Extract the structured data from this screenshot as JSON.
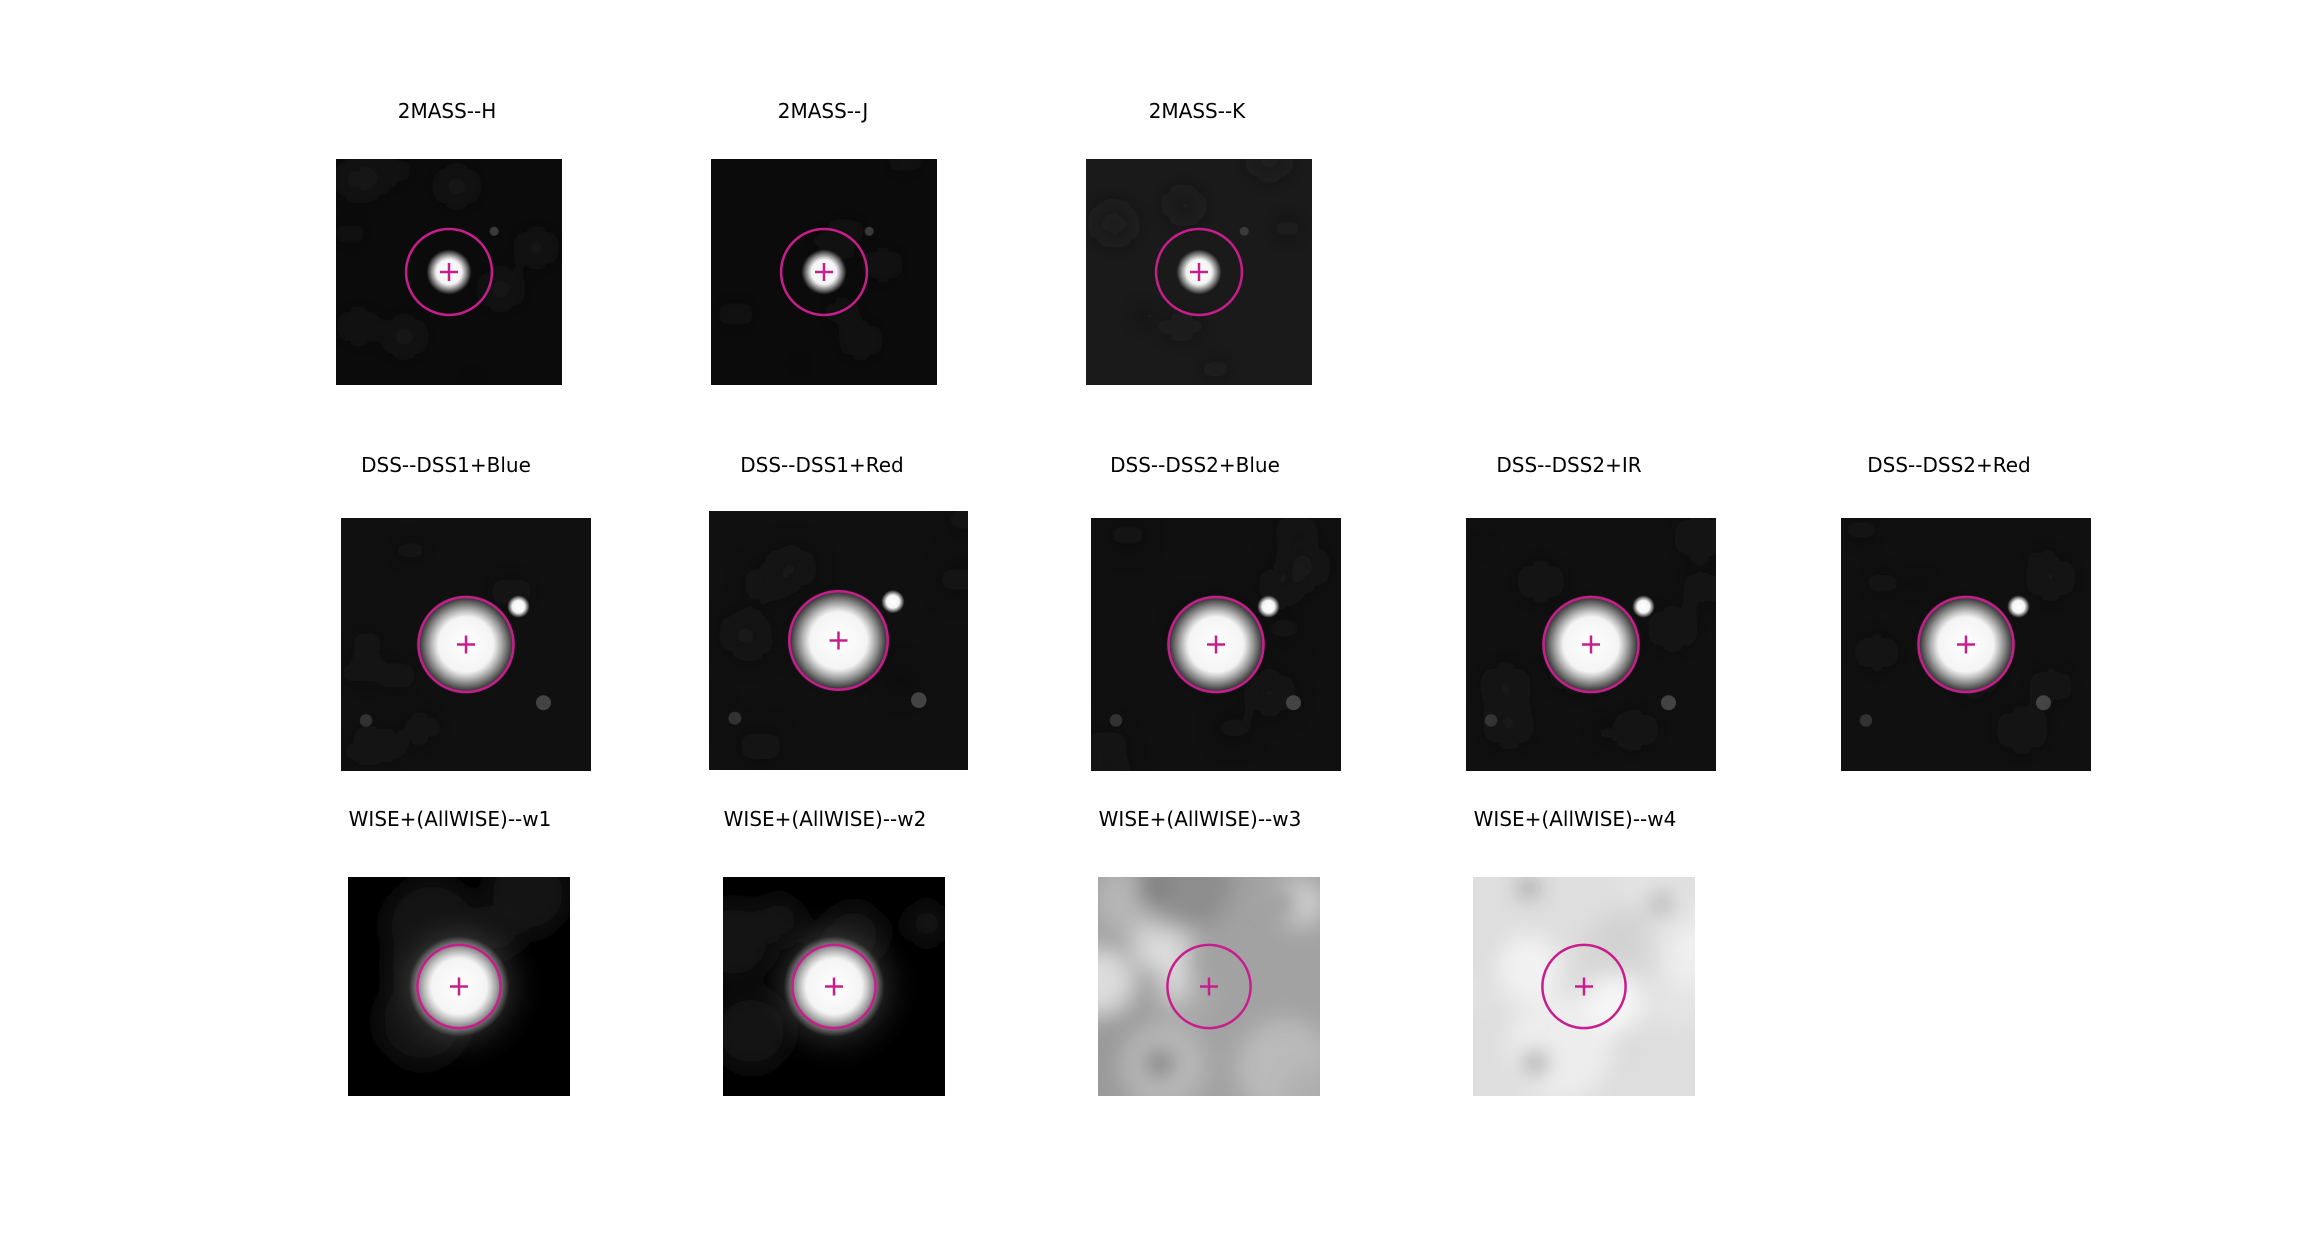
{
  "overlay": {
    "marker_color": "#c81e8c"
  },
  "rows": [
    {
      "panels": [
        {
          "title": "2MASS--H",
          "style": "twomass"
        },
        {
          "title": "2MASS--J",
          "style": "twomass"
        },
        {
          "title": "2MASS--K",
          "style": "twomass_noisy"
        }
      ]
    },
    {
      "panels": [
        {
          "title": "DSS--DSS1+Blue",
          "style": "dss"
        },
        {
          "title": "DSS--DSS1+Red",
          "style": "dss"
        },
        {
          "title": "DSS--DSS2+Blue",
          "style": "dss"
        },
        {
          "title": "DSS--DSS2+IR",
          "style": "dss"
        },
        {
          "title": "DSS--DSS2+Red",
          "style": "dss"
        }
      ]
    },
    {
      "panels": [
        {
          "title": "WISE+(AllWISE)--w1",
          "style": "wise"
        },
        {
          "title": "WISE+(AllWISE)--w2",
          "style": "wise"
        },
        {
          "title": "WISE+(AllWISE)--w3",
          "style": "wise_grey"
        },
        {
          "title": "WISE+(AllWISE)--w4",
          "style": "wise_light"
        }
      ]
    }
  ]
}
